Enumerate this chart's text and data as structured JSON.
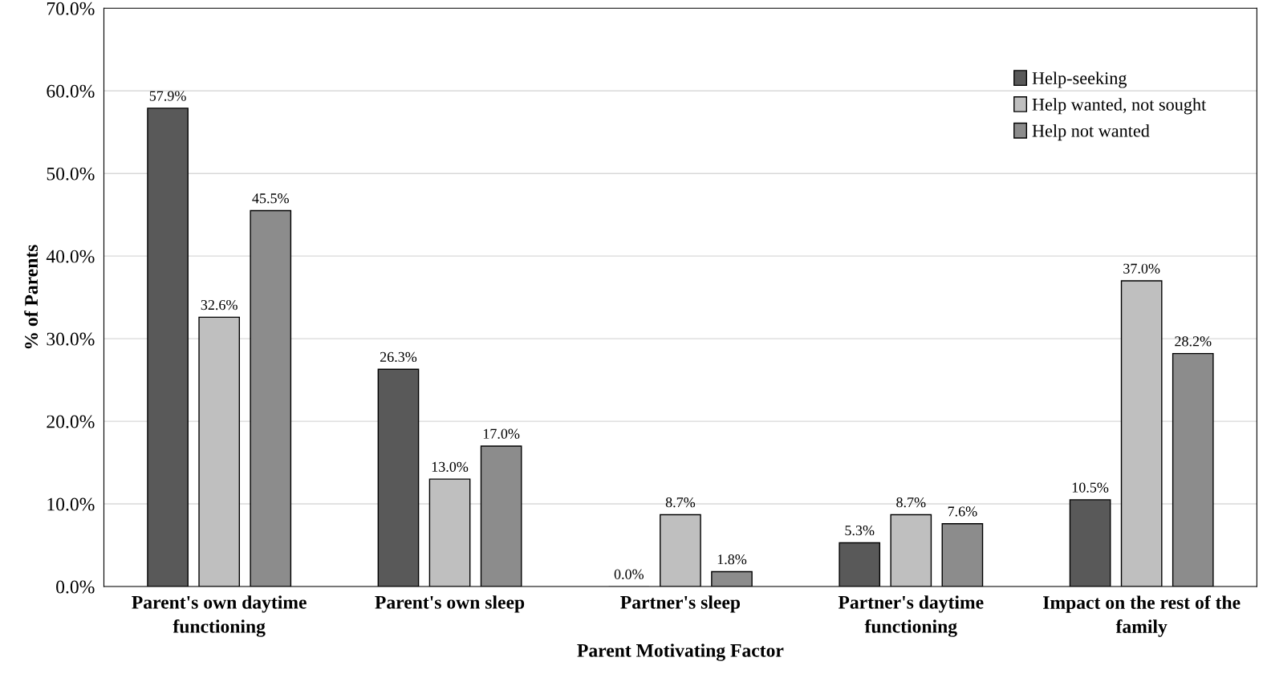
{
  "chart_data": {
    "type": "bar",
    "xlabel": "Parent Motivating Factor",
    "ylabel": "% of Parents",
    "categories": [
      "Parent's own daytime\nfunctioning",
      "Parent's own sleep",
      "Partner's sleep",
      "Partner's daytime\nfunctioning",
      "Impact on the rest of the\nfamily"
    ],
    "series": [
      {
        "name": "Help-seeking",
        "color": "#595959",
        "values": [
          57.9,
          26.3,
          0.0,
          5.3,
          10.5
        ],
        "value_labels": [
          "57.9%",
          "26.3%",
          "0.0%",
          "5.3%",
          "10.5%"
        ]
      },
      {
        "name": "Help wanted, not sought",
        "color": "#bfbfbf",
        "values": [
          32.6,
          13.0,
          8.7,
          8.7,
          37.0
        ],
        "value_labels": [
          "32.6%",
          "13.0%",
          "8.7%",
          "8.7%",
          "37.0%"
        ]
      },
      {
        "name": "Help not wanted",
        "color": "#8c8c8c",
        "values": [
          45.5,
          17.0,
          1.8,
          7.6,
          28.2
        ],
        "value_labels": [
          "45.5%",
          "17.0%",
          "1.8%",
          "7.6%",
          "28.2%"
        ]
      }
    ],
    "ylim": [
      0,
      70
    ],
    "yticks": [
      {
        "value": 0,
        "label": "0.0%"
      },
      {
        "value": 10,
        "label": "10.0%"
      },
      {
        "value": 20,
        "label": "20.0%"
      },
      {
        "value": 30,
        "label": "30.0%"
      },
      {
        "value": 40,
        "label": "40.0%"
      },
      {
        "value": 50,
        "label": "50.0%"
      },
      {
        "value": 60,
        "label": "60.0%"
      },
      {
        "value": 70,
        "label": "70.0%"
      }
    ],
    "grid": "y",
    "legend": "top right"
  }
}
